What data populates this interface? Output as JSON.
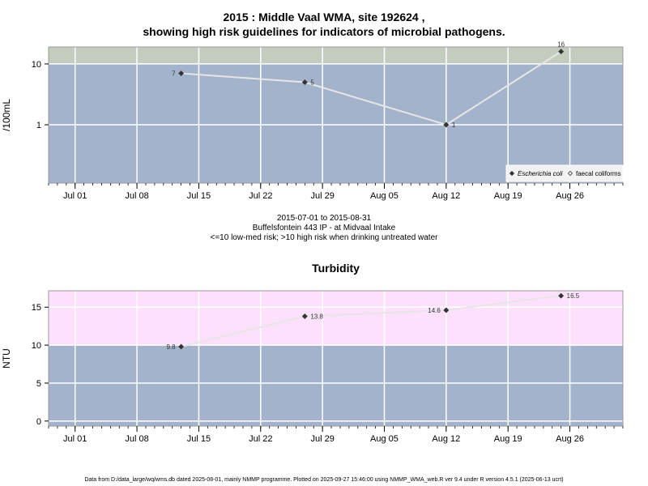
{
  "title_line1": "2015 : Middle Vaal WMA, site 192624 ,",
  "title_line2": "showing high risk guidelines for indicators of microbial pathogens.",
  "info_line1": "2015-07-01 to 2015-08-31",
  "info_line2": "Buffelsfontein 443 IP - at Midvaal Intake",
  "info_line3": "<=10 low-med risk; >10 high risk when drinking untreated water",
  "footer": "Data from D:/data_large/wq/wms.db dated 2025-08-01, mainly NMMP programme. Plotted on 2025-09-27 15:46:00 using NMMP_WMA_web.R ver 9.4 under R version 4.5.1 (2025-06-13 ucrt)",
  "colors": {
    "low_band": "#a3b3cc",
    "micro_high_band": "#c4ccbf",
    "turb_high_band": "#fce0fc",
    "line": "#e6e6e6",
    "point": "#333333"
  },
  "chart_data": [
    {
      "type": "line",
      "title": "",
      "ylabel": "/100mL",
      "xlabel": "",
      "y_scale": "log",
      "x_ticks": [
        "Jul 01",
        "Jul 08",
        "Jul 15",
        "Jul 22",
        "Jul 29",
        "Aug 05",
        "Aug 12",
        "Aug 19",
        "Aug 26"
      ],
      "x_tick_dates": [
        "2015-07-01",
        "2015-07-08",
        "2015-07-15",
        "2015-07-22",
        "2015-07-29",
        "2015-08-05",
        "2015-08-12",
        "2015-08-19",
        "2015-08-26"
      ],
      "y_ticks": [
        "1",
        "10"
      ],
      "y_tick_values": [
        1,
        10
      ],
      "xlim": [
        "2015-06-28",
        "2015-09-01"
      ],
      "ylim": [
        0.11,
        19
      ],
      "threshold": 10,
      "grid": true,
      "legend_position": "bottom-right",
      "legend": [
        {
          "label": "Escherichia coli",
          "marker": "filled-diamond",
          "italic": true
        },
        {
          "label": "faecal coliforms",
          "marker": "open-diamond",
          "italic": false
        }
      ],
      "series": [
        {
          "name": "Escherichia coli",
          "points": [
            {
              "x": "2015-07-13",
              "y": 7,
              "label": "7",
              "label_side": "left"
            },
            {
              "x": "2015-07-27",
              "y": 5,
              "label": "5",
              "label_side": "right"
            },
            {
              "x": "2015-08-12",
              "y": 1,
              "label": "1",
              "label_side": "right"
            },
            {
              "x": "2015-08-25",
              "y": 16,
              "label": "16",
              "label_side": "above"
            }
          ]
        }
      ]
    },
    {
      "type": "line",
      "title": "Turbidity",
      "ylabel": "NTU",
      "xlabel": "",
      "y_scale": "linear",
      "x_ticks": [
        "Jul 01",
        "Jul 08",
        "Jul 15",
        "Jul 22",
        "Jul 29",
        "Aug 05",
        "Aug 12",
        "Aug 19",
        "Aug 26"
      ],
      "x_tick_dates": [
        "2015-07-01",
        "2015-07-08",
        "2015-07-15",
        "2015-07-22",
        "2015-07-29",
        "2015-08-05",
        "2015-08-12",
        "2015-08-19",
        "2015-08-26"
      ],
      "y_ticks": [
        "0",
        "5",
        "10",
        "15"
      ],
      "y_tick_values": [
        0,
        5,
        10,
        15
      ],
      "xlim": [
        "2015-06-28",
        "2015-09-01"
      ],
      "ylim": [
        -0.66,
        17.16
      ],
      "threshold": 10,
      "grid": true,
      "series": [
        {
          "name": "",
          "points": [
            {
              "x": "2015-07-13",
              "y": 9.8,
              "label": "9.8",
              "label_side": "left"
            },
            {
              "x": "2015-07-27",
              "y": 13.8,
              "label": "13.8",
              "label_side": "right"
            },
            {
              "x": "2015-08-12",
              "y": 14.6,
              "label": "14.6",
              "label_side": "left"
            },
            {
              "x": "2015-08-25",
              "y": 16.5,
              "label": "16.5",
              "label_side": "right"
            }
          ]
        }
      ]
    }
  ]
}
